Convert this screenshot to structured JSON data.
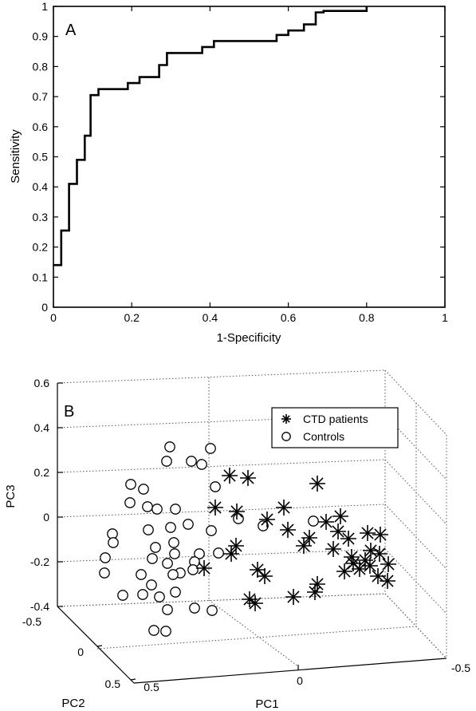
{
  "chart_data": [
    {
      "type": "line",
      "panel_label": "A",
      "xlabel": "1-Specificity",
      "ylabel": "Sensitivity",
      "xlim": [
        0,
        1
      ],
      "ylim": [
        0,
        1
      ],
      "x_ticks": [
        "0",
        "0.2",
        "0.4",
        "0.6",
        "0.8",
        "1"
      ],
      "y_ticks": [
        "0",
        "0.1",
        "0.2",
        "0.3",
        "0.4",
        "0.5",
        "0.6",
        "0.7",
        "0.8",
        "0.9",
        "1"
      ],
      "grid": false,
      "series": [
        {
          "x": [
            0,
            0.02,
            0.02,
            0.04,
            0.04,
            0.06,
            0.06,
            0.08,
            0.08,
            0.095,
            0.095,
            0.115,
            0.115,
            0.19,
            0.19,
            0.22,
            0.22,
            0.27,
            0.27,
            0.29,
            0.29,
            0.38,
            0.38,
            0.41,
            0.41,
            0.57,
            0.57,
            0.6,
            0.6,
            0.64,
            0.64,
            0.67,
            0.67,
            0.69,
            0.69,
            0.8,
            0.8
          ],
          "y": [
            0.14,
            0.14,
            0.255,
            0.255,
            0.41,
            0.41,
            0.49,
            0.49,
            0.57,
            0.57,
            0.705,
            0.705,
            0.725,
            0.725,
            0.745,
            0.745,
            0.765,
            0.765,
            0.805,
            0.805,
            0.845,
            0.845,
            0.865,
            0.865,
            0.885,
            0.885,
            0.905,
            0.905,
            0.92,
            0.92,
            0.94,
            0.94,
            0.98,
            0.98,
            0.985,
            0.985,
            1.0
          ]
        }
      ]
    },
    {
      "type": "scatter",
      "panel_label": "B",
      "xlabel": "PC1",
      "ylabel": "PC2",
      "zlabel": "PC3",
      "xlim": [
        -0.5,
        0.5
      ],
      "ylim": [
        -0.5,
        0.5
      ],
      "zlim": [
        -0.4,
        0.6
      ],
      "x_ticks": [
        "0.5",
        "0",
        "-0.5"
      ],
      "y_ticks": [
        "-0.5",
        "0",
        "0.5"
      ],
      "z_ticks": [
        "0.6",
        "0.4",
        "0.2",
        "0",
        "-0.2",
        "-0.4"
      ],
      "grid": true,
      "legend": {
        "placement": "top-right",
        "entries": [
          "CTD patients",
          "Controls"
        ]
      },
      "series": [
        {
          "name": "CTD patients",
          "marker": "asterisk",
          "points": [
            [
              288,
              596
            ],
            [
              311,
              599
            ],
            [
              398,
              606
            ],
            [
              270,
              636
            ],
            [
              356,
              636
            ],
            [
              297,
              641
            ],
            [
              335,
              651
            ],
            [
              427,
              647
            ],
            [
              409,
              654
            ],
            [
              361,
              664
            ],
            [
              461,
              668
            ],
            [
              477,
              670
            ],
            [
              388,
              674
            ],
            [
              424,
              666
            ],
            [
              437,
              675
            ],
            [
              296,
              684
            ],
            [
              381,
              684
            ],
            [
              418,
              688
            ],
            [
              465,
              690
            ],
            [
              290,
              694
            ],
            [
              476,
              694
            ],
            [
              441,
              698
            ],
            [
              458,
              702
            ],
            [
              443,
              706
            ],
            [
              487,
              707
            ],
            [
              464,
              709
            ],
            [
              256,
              712
            ],
            [
              323,
              714
            ],
            [
              432,
              716
            ],
            [
              451,
              713
            ],
            [
              332,
              722
            ],
            [
              474,
              722
            ],
            [
              398,
              732
            ],
            [
              486,
              728
            ],
            [
              395,
              742
            ],
            [
              368,
              748
            ],
            [
              313,
              751
            ],
            [
              320,
              756
            ]
          ]
        },
        {
          "name": "Controls",
          "points": [
            [
              213,
              560
            ],
            [
              209,
              578
            ],
            [
              240,
              578
            ],
            [
              264,
              562
            ],
            [
              253,
              582
            ],
            [
              270,
              610
            ],
            [
              164,
              607
            ],
            [
              180,
              613
            ],
            [
              185,
              635
            ],
            [
              163,
              630
            ],
            [
              197,
              638
            ],
            [
              220,
              638
            ],
            [
              299,
              650
            ],
            [
              330,
              659
            ],
            [
              393,
              653
            ],
            [
              141,
              669
            ],
            [
              142,
              680
            ],
            [
              186,
              664
            ],
            [
              214,
              661
            ],
            [
              236,
              657
            ],
            [
              218,
              680
            ],
            [
              195,
              686
            ],
            [
              191,
              700
            ],
            [
              250,
              694
            ],
            [
              132,
              699
            ],
            [
              274,
              693
            ],
            [
              244,
              704
            ],
            [
              219,
              694
            ],
            [
              210,
              706
            ],
            [
              226,
              718
            ],
            [
              242,
              714
            ],
            [
              177,
              720
            ],
            [
              190,
              733
            ],
            [
              217,
              720
            ],
            [
              220,
              742
            ],
            [
              131,
              718
            ],
            [
              154,
              746
            ],
            [
              265,
              665
            ],
            [
              179,
              745
            ],
            [
              200,
              748
            ],
            [
              210,
              764
            ],
            [
              244,
              762
            ],
            [
              266,
              765
            ],
            [
              193,
              790
            ],
            [
              208,
              791
            ]
          ]
        }
      ]
    }
  ]
}
